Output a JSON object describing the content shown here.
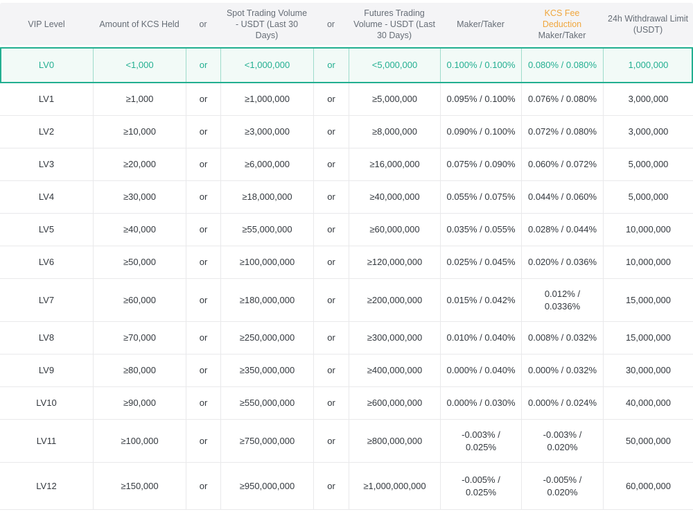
{
  "colors": {
    "accent_teal": "#23af91",
    "accent_orange": "#f0a63d",
    "header_background": "#f4f4f6",
    "highlight_row_background": "#f2faf7"
  },
  "table": {
    "columns": [
      {
        "label": "VIP Level"
      },
      {
        "label": "Amount of KCS Held"
      },
      {
        "label": "or"
      },
      {
        "label": "Spot Trading Volume - USDT (Last 30 Days)"
      },
      {
        "label": "or"
      },
      {
        "label": "Futures Trading Volume - USDT (Last 30 Days)"
      },
      {
        "label": "Maker/Taker"
      },
      {
        "label": "KCS Fee Deduction",
        "sublabel": "Maker/Taker"
      },
      {
        "label": "24h Withdrawal Limit (USDT)"
      }
    ],
    "rows": [
      {
        "level": "LV0",
        "kcs_held": "<1,000",
        "or1": "or",
        "spot_volume": "<1,000,000",
        "or2": "or",
        "futures_volume": "<5,000,000",
        "maker_taker": "0.100% / 0.100%",
        "kcs_fee_maker_taker": "0.080% / 0.080%",
        "withdrawal_limit": "1,000,000",
        "highlighted": true
      },
      {
        "level": "LV1",
        "kcs_held": "≥1,000",
        "or1": "or",
        "spot_volume": "≥1,000,000",
        "or2": "or",
        "futures_volume": "≥5,000,000",
        "maker_taker": "0.095% / 0.100%",
        "kcs_fee_maker_taker": "0.076% / 0.080%",
        "withdrawal_limit": "3,000,000",
        "highlighted": false
      },
      {
        "level": "LV2",
        "kcs_held": "≥10,000",
        "or1": "or",
        "spot_volume": "≥3,000,000",
        "or2": "or",
        "futures_volume": "≥8,000,000",
        "maker_taker": "0.090% / 0.100%",
        "kcs_fee_maker_taker": "0.072% / 0.080%",
        "withdrawal_limit": "3,000,000",
        "highlighted": false
      },
      {
        "level": "LV3",
        "kcs_held": "≥20,000",
        "or1": "or",
        "spot_volume": "≥6,000,000",
        "or2": "or",
        "futures_volume": "≥16,000,000",
        "maker_taker": "0.075% / 0.090%",
        "kcs_fee_maker_taker": "0.060% / 0.072%",
        "withdrawal_limit": "5,000,000",
        "highlighted": false
      },
      {
        "level": "LV4",
        "kcs_held": "≥30,000",
        "or1": "or",
        "spot_volume": "≥18,000,000",
        "or2": "or",
        "futures_volume": "≥40,000,000",
        "maker_taker": "0.055% / 0.075%",
        "kcs_fee_maker_taker": "0.044% / 0.060%",
        "withdrawal_limit": "5,000,000",
        "highlighted": false
      },
      {
        "level": "LV5",
        "kcs_held": "≥40,000",
        "or1": "or",
        "spot_volume": "≥55,000,000",
        "or2": "or",
        "futures_volume": "≥60,000,000",
        "maker_taker": "0.035% / 0.055%",
        "kcs_fee_maker_taker": "0.028% / 0.044%",
        "withdrawal_limit": "10,000,000",
        "highlighted": false
      },
      {
        "level": "LV6",
        "kcs_held": "≥50,000",
        "or1": "or",
        "spot_volume": "≥100,000,000",
        "or2": "or",
        "futures_volume": "≥120,000,000",
        "maker_taker": "0.025% / 0.045%",
        "kcs_fee_maker_taker": "0.020% / 0.036%",
        "withdrawal_limit": "10,000,000",
        "highlighted": false
      },
      {
        "level": "LV7",
        "kcs_held": "≥60,000",
        "or1": "or",
        "spot_volume": "≥180,000,000",
        "or2": "or",
        "futures_volume": "≥200,000,000",
        "maker_taker": "0.015% / 0.042%",
        "kcs_fee_maker_taker": "0.012% /\n0.0336%",
        "withdrawal_limit": "15,000,000",
        "highlighted": false
      },
      {
        "level": "LV8",
        "kcs_held": "≥70,000",
        "or1": "or",
        "spot_volume": "≥250,000,000",
        "or2": "or",
        "futures_volume": "≥300,000,000",
        "maker_taker": "0.010% / 0.040%",
        "kcs_fee_maker_taker": "0.008% / 0.032%",
        "withdrawal_limit": "15,000,000",
        "highlighted": false
      },
      {
        "level": "LV9",
        "kcs_held": "≥80,000",
        "or1": "or",
        "spot_volume": "≥350,000,000",
        "or2": "or",
        "futures_volume": "≥400,000,000",
        "maker_taker": "0.000% / 0.040%",
        "kcs_fee_maker_taker": "0.000% / 0.032%",
        "withdrawal_limit": "30,000,000",
        "highlighted": false
      },
      {
        "level": "LV10",
        "kcs_held": "≥90,000",
        "or1": "or",
        "spot_volume": "≥550,000,000",
        "or2": "or",
        "futures_volume": "≥600,000,000",
        "maker_taker": "0.000% / 0.030%",
        "kcs_fee_maker_taker": "0.000% / 0.024%",
        "withdrawal_limit": "40,000,000",
        "highlighted": false
      },
      {
        "level": "LV11",
        "kcs_held": "≥100,000",
        "or1": "or",
        "spot_volume": "≥750,000,000",
        "or2": "or",
        "futures_volume": "≥800,000,000",
        "maker_taker": "-0.003% /\n0.025%",
        "kcs_fee_maker_taker": "-0.003% /\n0.020%",
        "withdrawal_limit": "50,000,000",
        "highlighted": false
      },
      {
        "level": "LV12",
        "kcs_held": "≥150,000",
        "or1": "or",
        "spot_volume": "≥950,000,000",
        "or2": "or",
        "futures_volume": "≥1,000,000,000",
        "maker_taker": "-0.005% /\n0.025%",
        "kcs_fee_maker_taker": "-0.005% /\n0.020%",
        "withdrawal_limit": "60,000,000",
        "highlighted": false
      }
    ]
  }
}
